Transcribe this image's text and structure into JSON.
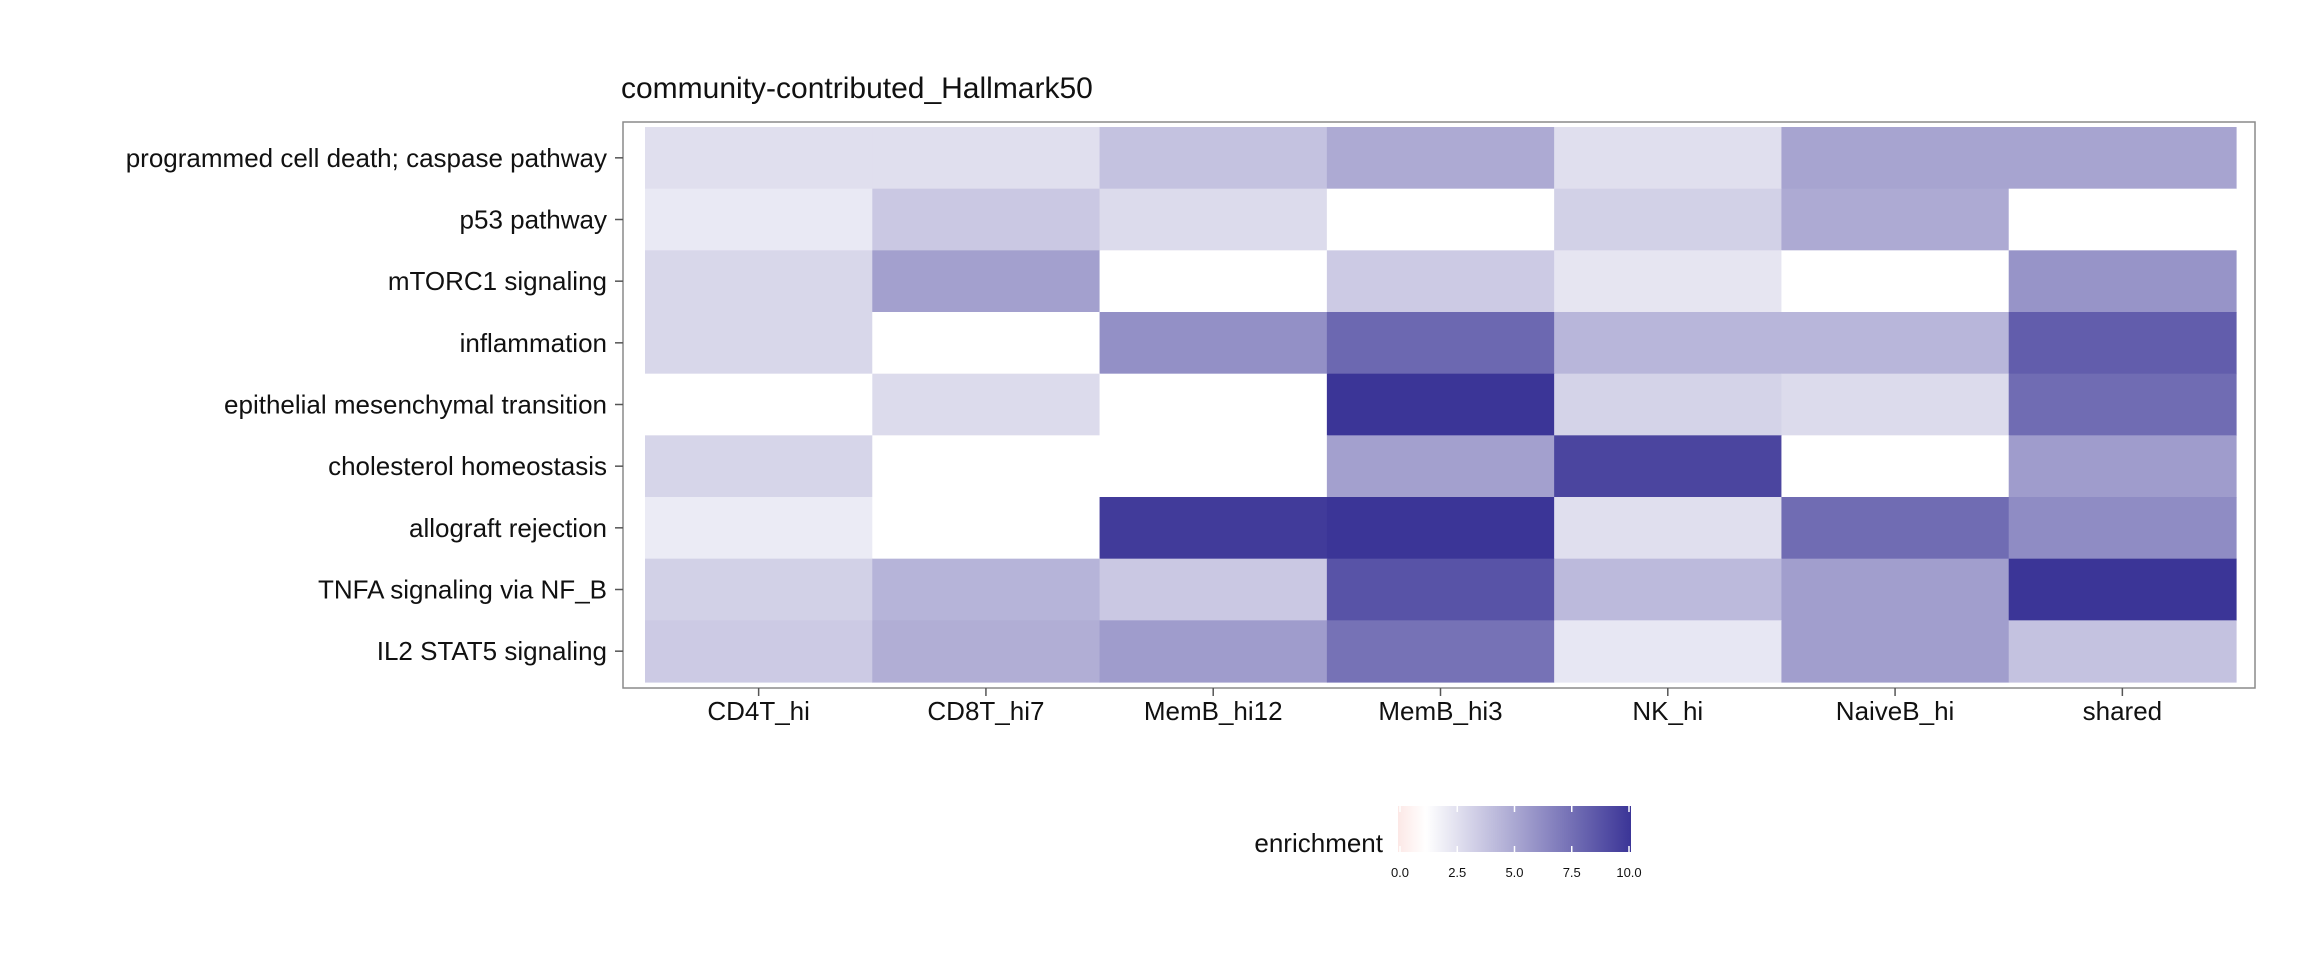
{
  "chart_data": {
    "type": "heatmap",
    "title": "community-contributed_Hallmark50",
    "xlabel": "",
    "ylabel": "",
    "x_categories": [
      "CD4T_hi",
      "CD8T_hi7",
      "MemB_hi12",
      "MemB_hi3",
      "NK_hi",
      "NaiveB_hi",
      "shared"
    ],
    "y_categories": [
      "programmed cell death; caspase pathway",
      "p53 pathway",
      "mTORC1 signaling",
      "inflammation",
      "epithelial mesenchymal transition",
      "cholesterol homeostasis",
      "allograft rejection",
      "TNFA signaling via NF_B",
      "IL2 STAT5 signaling"
    ],
    "values": [
      [
        1.6,
        1.6,
        3.0,
        4.2,
        1.6,
        4.5,
        4.5
      ],
      [
        1.1,
        2.7,
        1.8,
        null,
        2.3,
        4.2,
        null
      ],
      [
        2.0,
        4.7,
        null,
        2.6,
        1.3,
        null,
        5.3
      ],
      [
        2.0,
        null,
        5.5,
        7.5,
        3.6,
        3.6,
        8.0
      ],
      [
        null,
        1.8,
        null,
        10.0,
        2.2,
        1.8,
        7.3
      ],
      [
        2.1,
        null,
        null,
        4.7,
        9.2,
        null,
        4.9
      ],
      [
        1.0,
        null,
        9.7,
        10.0,
        1.6,
        7.3,
        5.7
      ],
      [
        2.3,
        3.7,
        2.7,
        8.5,
        3.4,
        4.8,
        10.0
      ],
      [
        2.6,
        4.0,
        4.9,
        7.0,
        1.2,
        4.8,
        3.0
      ]
    ],
    "legend": {
      "title": "enrichment",
      "min": 0,
      "max": 10,
      "ticks": [
        "0.0",
        "2.5",
        "5.0",
        "7.5",
        "10.0"
      ],
      "position": "bottom",
      "low_color": "#fce8e6",
      "mid_color": "#ffffff",
      "high_color": "#3b3597"
    }
  }
}
